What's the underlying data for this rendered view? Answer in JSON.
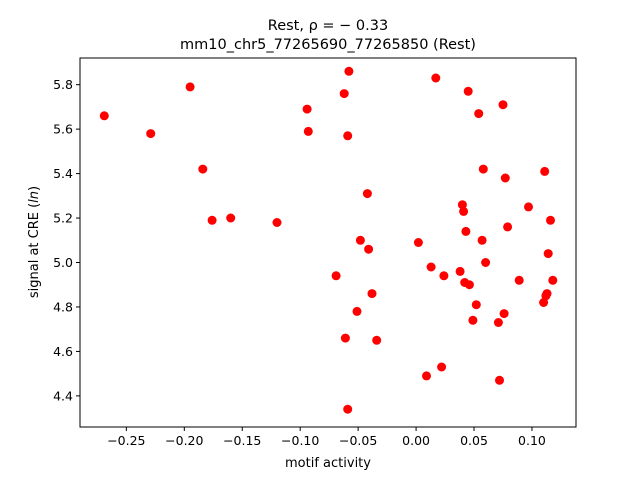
{
  "chart_data": {
    "type": "scatter",
    "title_line1": "Rest, ρ = − 0.33",
    "title_line2": "mm10_chr5_77265690_77265850 (Rest)",
    "xlabel": "motif activity",
    "ylabel": "signal at CRE (ln)",
    "xlim": [
      -0.29,
      0.138
    ],
    "ylim": [
      4.26,
      5.92
    ],
    "grid": false,
    "marker_color": "#ff0000",
    "xticks": [
      -0.25,
      -0.2,
      -0.15,
      -0.1,
      -0.05,
      0.0,
      0.05,
      0.1
    ],
    "xtick_labels": [
      "−0.25",
      "−0.20",
      "−0.15",
      "−0.10",
      "−0.05",
      "0.00",
      "0.05",
      "0.10"
    ],
    "yticks": [
      4.4,
      4.6,
      4.8,
      5.0,
      5.2,
      5.4,
      5.6,
      5.8
    ],
    "ytick_labels": [
      "4.4",
      "4.6",
      "4.8",
      "5.0",
      "5.2",
      "5.4",
      "5.6",
      "5.8"
    ],
    "points": [
      {
        "x": -0.269,
        "y": 5.66
      },
      {
        "x": -0.229,
        "y": 5.58
      },
      {
        "x": -0.195,
        "y": 5.79
      },
      {
        "x": -0.184,
        "y": 5.42
      },
      {
        "x": -0.176,
        "y": 5.19
      },
      {
        "x": -0.16,
        "y": 5.2
      },
      {
        "x": -0.12,
        "y": 5.18
      },
      {
        "x": -0.094,
        "y": 5.69
      },
      {
        "x": -0.093,
        "y": 5.59
      },
      {
        "x": -0.069,
        "y": 4.94
      },
      {
        "x": -0.062,
        "y": 5.76
      },
      {
        "x": -0.061,
        "y": 4.66
      },
      {
        "x": -0.058,
        "y": 5.86
      },
      {
        "x": -0.059,
        "y": 5.57
      },
      {
        "x": -0.059,
        "y": 4.34
      },
      {
        "x": -0.051,
        "y": 4.78
      },
      {
        "x": -0.048,
        "y": 5.1
      },
      {
        "x": -0.042,
        "y": 5.31
      },
      {
        "x": -0.041,
        "y": 5.06
      },
      {
        "x": -0.038,
        "y": 4.86
      },
      {
        "x": -0.034,
        "y": 4.65
      },
      {
        "x": 0.002,
        "y": 5.09
      },
      {
        "x": 0.009,
        "y": 4.49
      },
      {
        "x": 0.013,
        "y": 4.98
      },
      {
        "x": 0.017,
        "y": 5.83
      },
      {
        "x": 0.022,
        "y": 4.53
      },
      {
        "x": 0.024,
        "y": 4.94
      },
      {
        "x": 0.038,
        "y": 4.96
      },
      {
        "x": 0.04,
        "y": 5.26
      },
      {
        "x": 0.041,
        "y": 5.23
      },
      {
        "x": 0.042,
        "y": 4.91
      },
      {
        "x": 0.043,
        "y": 5.14
      },
      {
        "x": 0.045,
        "y": 5.77
      },
      {
        "x": 0.046,
        "y": 4.9
      },
      {
        "x": 0.049,
        "y": 4.74
      },
      {
        "x": 0.052,
        "y": 4.81
      },
      {
        "x": 0.054,
        "y": 5.67
      },
      {
        "x": 0.057,
        "y": 5.1
      },
      {
        "x": 0.058,
        "y": 5.42
      },
      {
        "x": 0.06,
        "y": 5.0
      },
      {
        "x": 0.071,
        "y": 4.73
      },
      {
        "x": 0.072,
        "y": 4.47
      },
      {
        "x": 0.075,
        "y": 5.71
      },
      {
        "x": 0.076,
        "y": 4.77
      },
      {
        "x": 0.077,
        "y": 5.38
      },
      {
        "x": 0.079,
        "y": 5.16
      },
      {
        "x": 0.089,
        "y": 4.92
      },
      {
        "x": 0.097,
        "y": 5.25
      },
      {
        "x": 0.11,
        "y": 4.82
      },
      {
        "x": 0.111,
        "y": 5.41
      },
      {
        "x": 0.112,
        "y": 4.85
      },
      {
        "x": 0.113,
        "y": 4.86
      },
      {
        "x": 0.114,
        "y": 5.04
      },
      {
        "x": 0.116,
        "y": 5.19
      },
      {
        "x": 0.118,
        "y": 4.92
      }
    ]
  }
}
